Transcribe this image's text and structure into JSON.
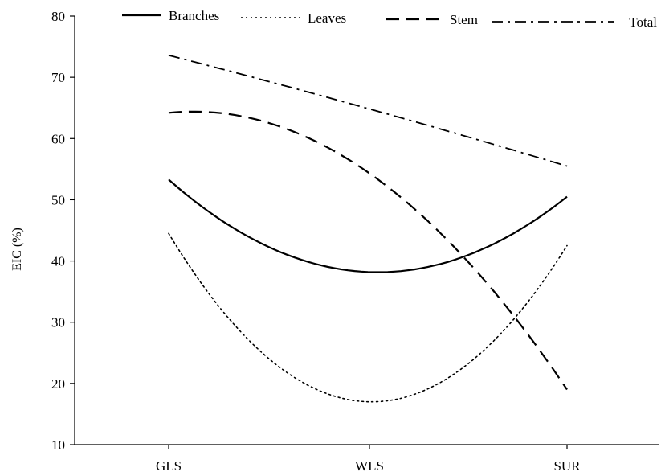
{
  "chart_data": {
    "type": "line",
    "title": "",
    "xlabel": "",
    "ylabel": "EIC (%)",
    "categories": [
      "GLS",
      "WLS",
      "SUR"
    ],
    "ylim": [
      10,
      80
    ],
    "yticks": [
      10,
      20,
      30,
      40,
      50,
      60,
      70,
      80
    ],
    "grid": false,
    "legend_position": "top",
    "series": [
      {
        "name": "Branches",
        "values": [
          53.3,
          38.2,
          50.5
        ],
        "style": "solid",
        "color": "#000000"
      },
      {
        "name": "Leaves",
        "values": [
          44.5,
          17.0,
          42.5
        ],
        "style": "dotted",
        "color": "#000000"
      },
      {
        "name": "Stem",
        "values": [
          64.2,
          54.5,
          19.0
        ],
        "style": "dashed",
        "color": "#000000"
      },
      {
        "name": "Total",
        "values": [
          73.6,
          64.9,
          55.5
        ],
        "style": "dashdot",
        "color": "#000000"
      }
    ]
  }
}
